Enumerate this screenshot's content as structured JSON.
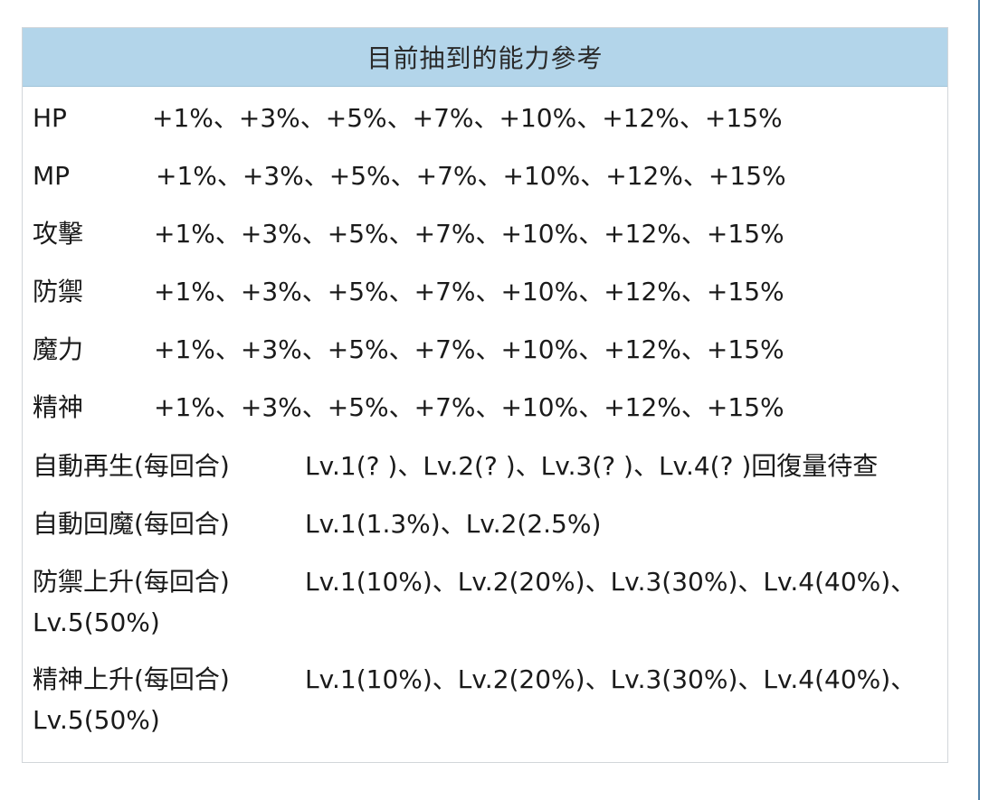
{
  "title": "目前抽到的能力參考",
  "stat_rows": [
    {
      "label": "HP",
      "value": "+1%、+3%、+5%、+7%、+10%、+12%、+15%"
    },
    {
      "label": "MP",
      "value": "+1%、+3%、+5%、+7%、+10%、+12%、+15%"
    },
    {
      "label": "攻擊",
      "value": "+1%、+3%、+5%、+7%、+10%、+12%、+15%"
    },
    {
      "label": "防禦",
      "value": "+1%、+3%、+5%、+7%、+10%、+12%、+15%"
    },
    {
      "label": "魔力",
      "value": "+1%、+3%、+5%、+7%、+10%、+12%、+15%"
    },
    {
      "label": "精神",
      "value": "+1%、+3%、+5%、+7%、+10%、+12%、+15%"
    }
  ],
  "skill_rows": [
    {
      "label": "自動再生(每回合)",
      "value": "Lv.1(? )、Lv.2(? )、Lv.3(? )、Lv.4(? )回復量待查"
    },
    {
      "label": "自動回魔(每回合)",
      "value": "Lv.1(1.3%)、Lv.2(2.5%)"
    },
    {
      "label": "防禦上升(每回合)",
      "value": "Lv.1(10%)、Lv.2(20%)、Lv.3(30%)、Lv.4(40%)、Lv.5(50%)"
    },
    {
      "label": "精神上升(每回合)",
      "value": "Lv.1(10%)、Lv.2(20%)、Lv.3(30%)、Lv.4(40%)、Lv.5(50%)"
    }
  ]
}
